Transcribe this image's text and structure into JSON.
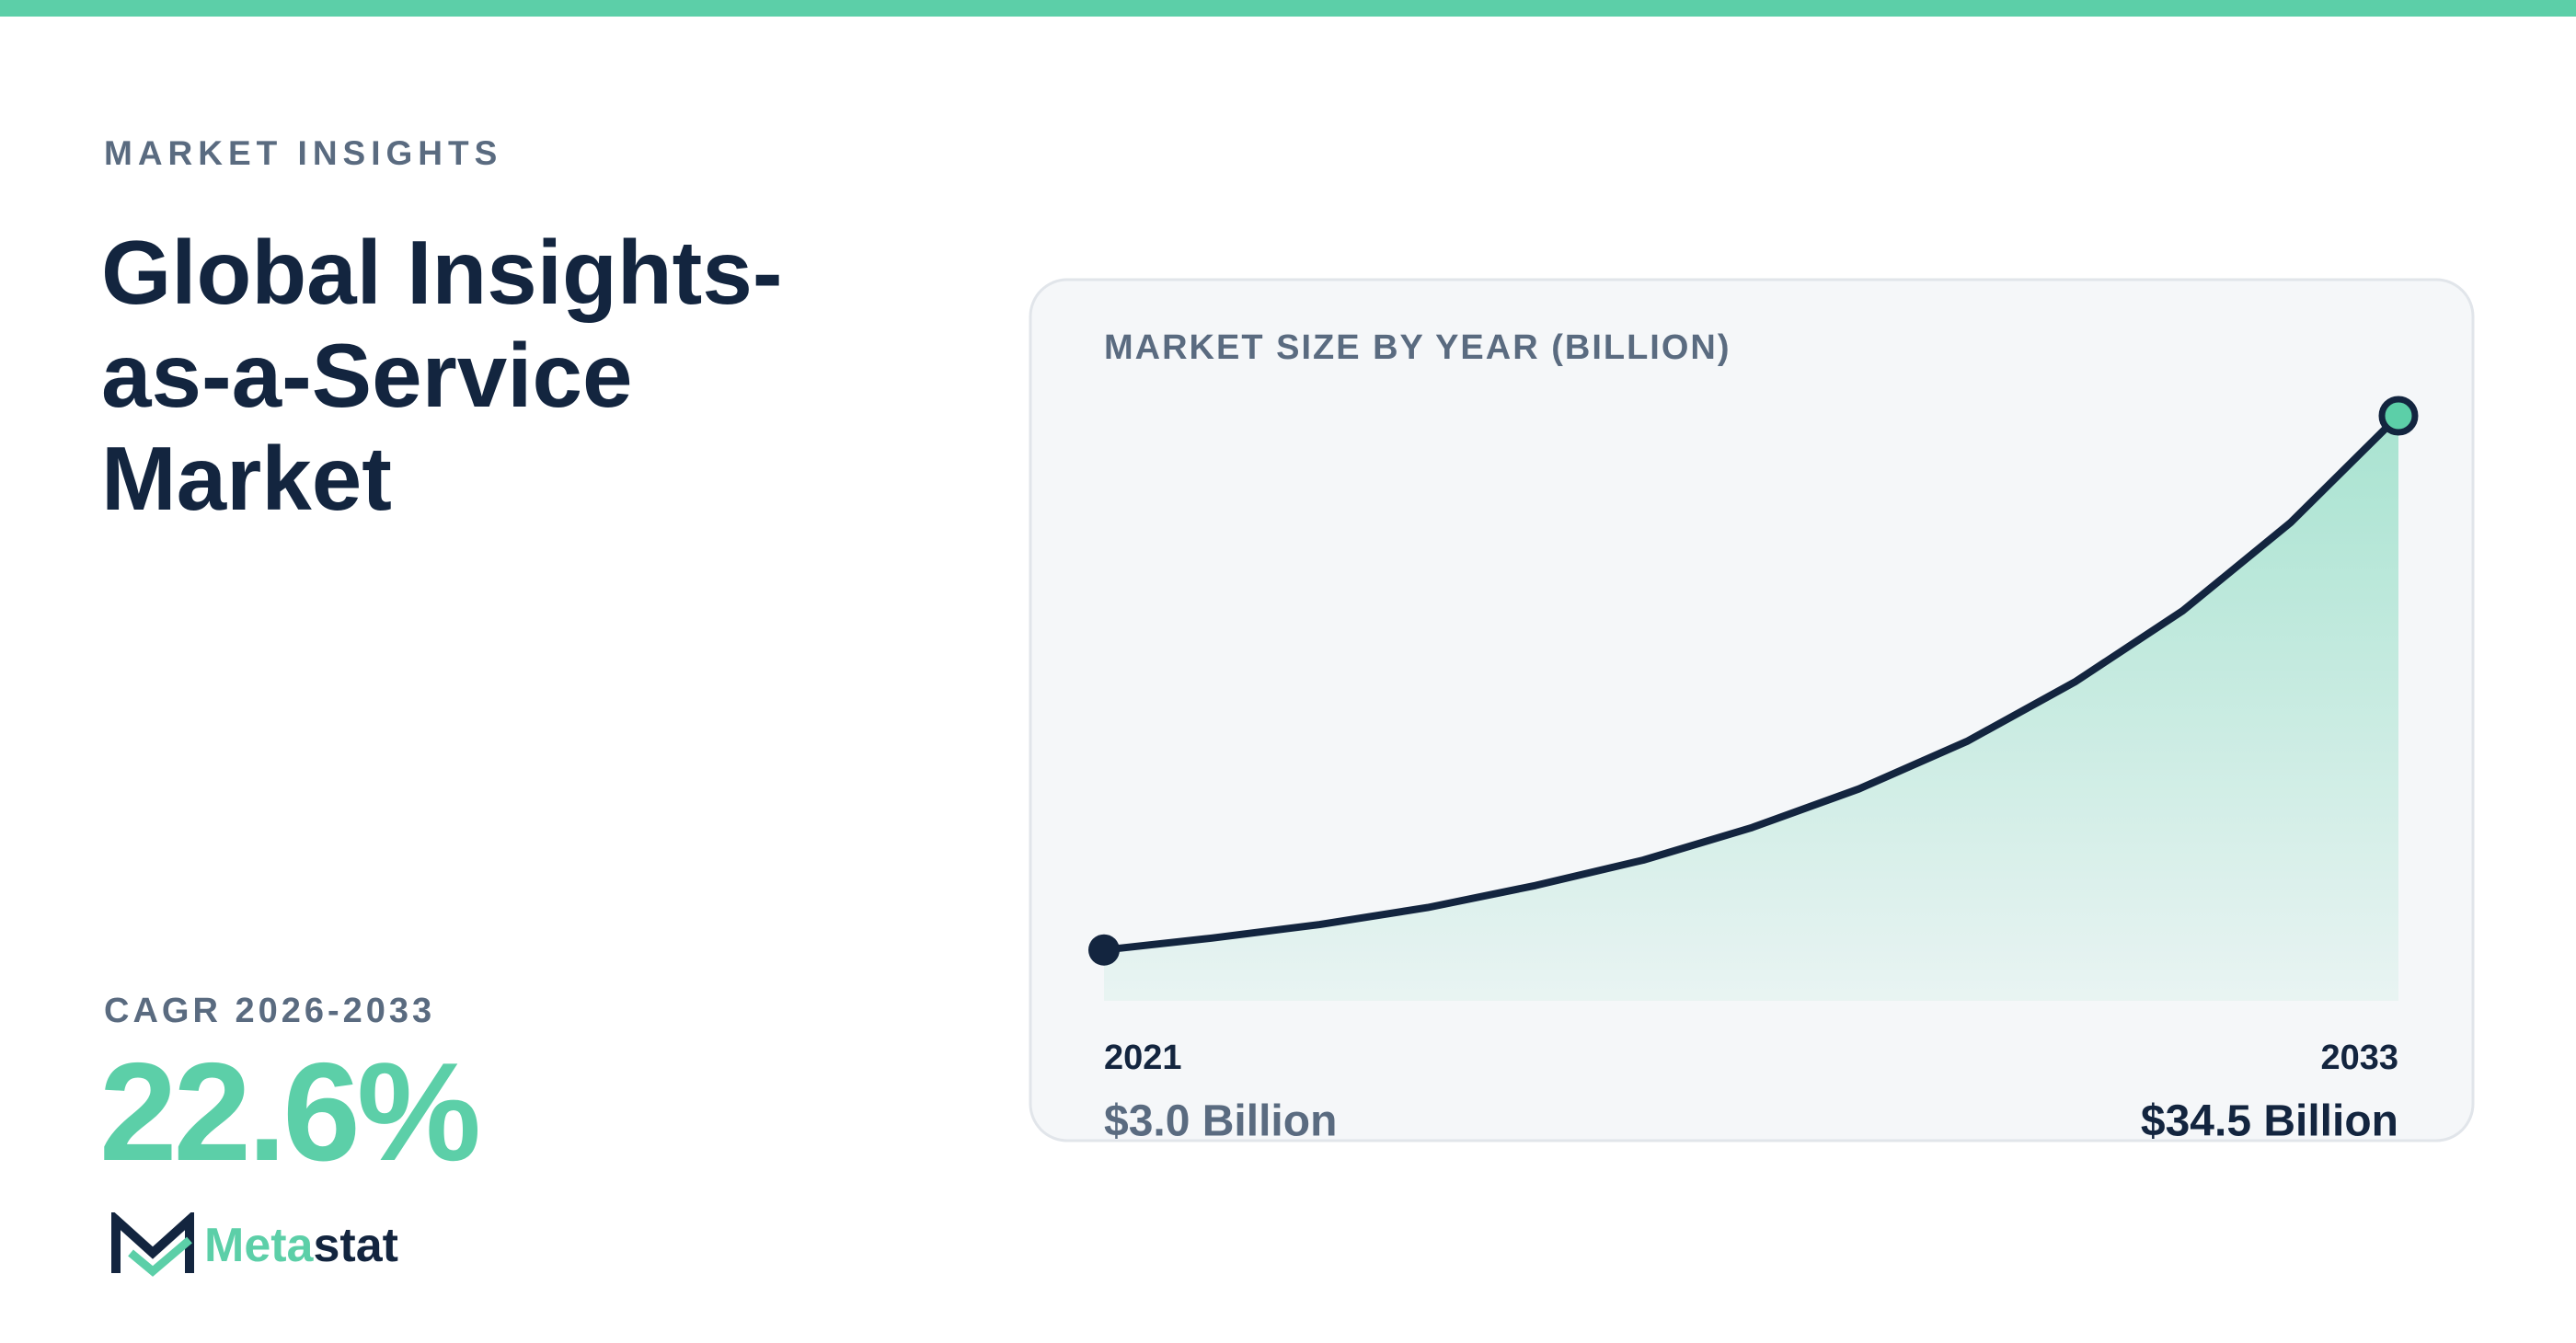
{
  "header": {
    "kicker": "MARKET INSIGHTS",
    "title": "Global Insights-as-a-Service Market"
  },
  "cagr": {
    "label": "CAGR 2026-2033",
    "value": "22.6%"
  },
  "logo": {
    "part1": "Meta",
    "part2": "stat"
  },
  "chart_data": {
    "type": "line",
    "title": "MARKET SIZE BY YEAR (BILLION)",
    "x": [
      2021,
      2022,
      2023,
      2024,
      2025,
      2026,
      2027,
      2028,
      2029,
      2030,
      2031,
      2032,
      2033
    ],
    "values": [
      3.0,
      3.7,
      4.5,
      5.5,
      6.8,
      8.3,
      10.2,
      12.5,
      15.3,
      18.8,
      23.0,
      28.2,
      34.5
    ],
    "value_labels": [
      "$3.0 Billion",
      null,
      null,
      null,
      null,
      null,
      null,
      null,
      null,
      null,
      null,
      null,
      "$34.5 Billion"
    ],
    "xlim": [
      2021,
      2033
    ],
    "ylim": [
      0,
      34.5
    ],
    "color": "#13253f",
    "fill_color": "#5ccfa8"
  }
}
